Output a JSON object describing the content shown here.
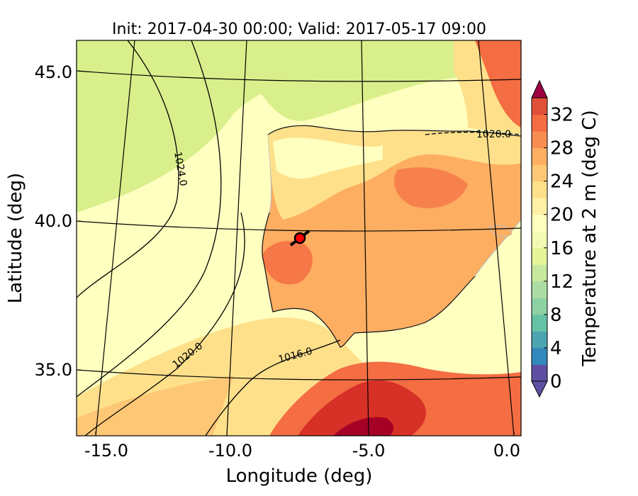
{
  "figure": {
    "title": "Init: 2017-04-30 00:00; Valid: 2017-05-17 09:00",
    "xlabel": "Longitude (deg)",
    "ylabel": "Latitude (deg)"
  },
  "x_ticks": [
    "-15.0",
    "-10.0",
    "-5.0",
    "0.0"
  ],
  "y_ticks": [
    "45.0",
    "40.0",
    "35.0"
  ],
  "map": {
    "extent_lon": [
      -16.0,
      0.2
    ],
    "extent_lat": [
      32.8,
      46.0
    ],
    "marker": {
      "lon": -7.7,
      "lat": 39.3,
      "color": "#ff0000"
    },
    "isobar_labels": [
      "1024.0",
      "1020.0",
      "1016.0",
      "1020.0"
    ],
    "colors": {
      "sea_cool": "#d9ef8b",
      "sea_mild": "#ffffbf",
      "warm": "#fee08b",
      "land_warm": "#fdae61",
      "hot": "#f46d43",
      "very_hot": "#d73027",
      "extreme": "#a50026",
      "outline": "#cccccc"
    }
  },
  "colorbar": {
    "label": "Temperature at 2 m (deg C)",
    "ticks": [
      "0",
      "4",
      "8",
      "12",
      "16",
      "20",
      "24",
      "28",
      "32"
    ],
    "levels": [
      0,
      2,
      4,
      6,
      8,
      10,
      12,
      14,
      16,
      18,
      20,
      22,
      24,
      26,
      28,
      30,
      32,
      34
    ],
    "colors": [
      "#5e4fa2",
      "#3288bd",
      "#4ca5b1",
      "#66c2a5",
      "#8ed1a4",
      "#abdda4",
      "#c7e89e",
      "#e6f598",
      "#f3fab3",
      "#ffffbf",
      "#fff0a6",
      "#fee08b",
      "#fdc776",
      "#fdae61",
      "#f88d52",
      "#f46d43",
      "#e04f38",
      "#d53e4f",
      "#9e0142"
    ],
    "over_color": "#9e0142",
    "under_color": "#5e4fa2"
  }
}
